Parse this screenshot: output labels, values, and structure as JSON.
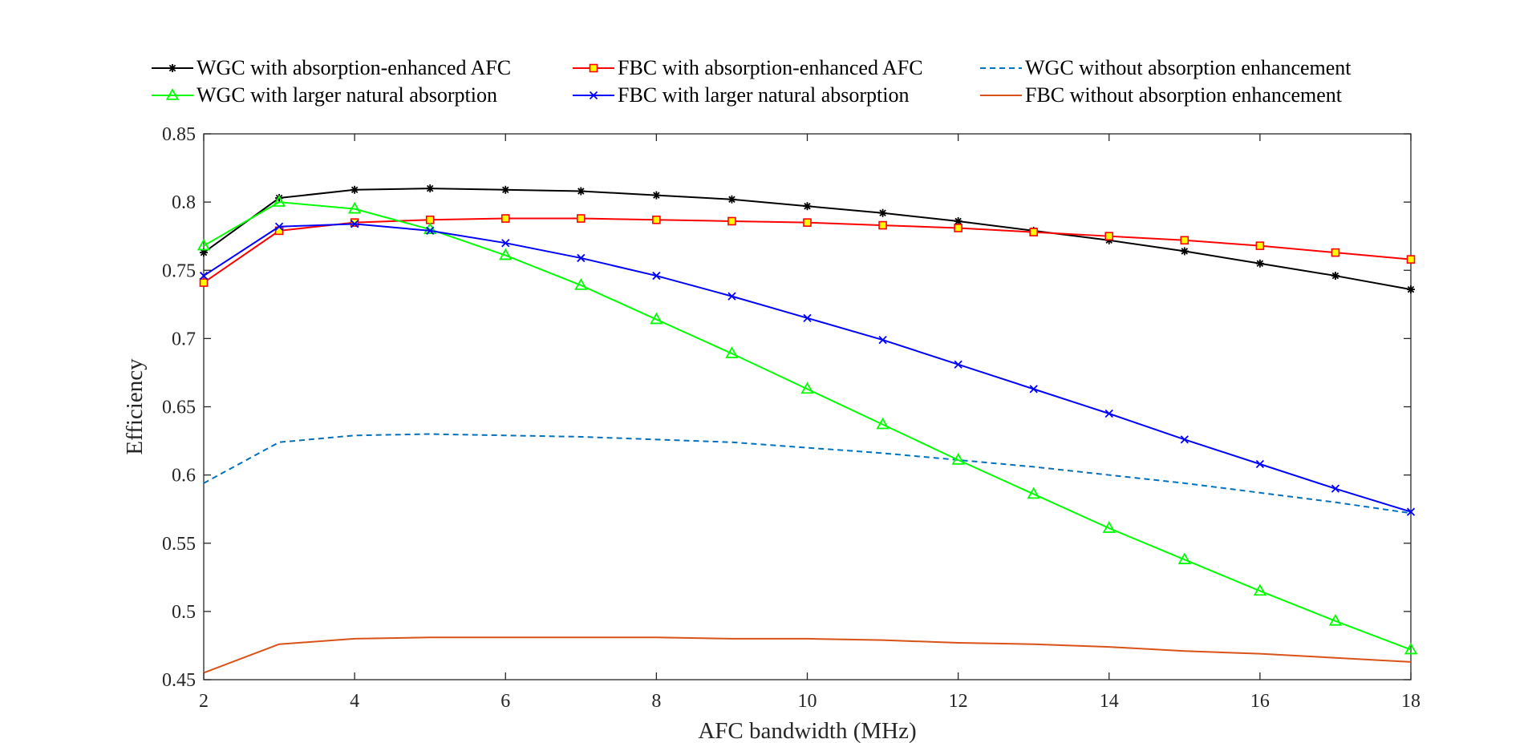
{
  "chart_data": {
    "type": "line",
    "title": "",
    "xlabel": "AFC bandwidth (MHz)",
    "ylabel": "Efficiency",
    "xlim": [
      2,
      18
    ],
    "ylim": [
      0.45,
      0.85
    ],
    "x_ticks": [
      2,
      4,
      6,
      8,
      10,
      12,
      14,
      16,
      18
    ],
    "y_ticks": [
      0.45,
      0.5,
      0.55,
      0.6,
      0.65,
      0.7,
      0.75,
      0.8,
      0.85
    ],
    "x_tick_labels": [
      "2",
      "4",
      "6",
      "8",
      "10",
      "12",
      "14",
      "16",
      "18"
    ],
    "y_tick_labels": [
      "0.45",
      "0.5",
      "0.55",
      "0.6",
      "0.65",
      "0.7",
      "0.75",
      "0.8",
      "0.85"
    ],
    "grid": false,
    "legend_position": "top",
    "x": [
      2,
      3,
      4,
      5,
      6,
      7,
      8,
      9,
      10,
      11,
      12,
      13,
      14,
      15,
      16,
      17,
      18
    ],
    "series": [
      {
        "name": "WGC with absorption-enhanced AFC",
        "color": "#000000",
        "marker": "asterisk",
        "dash": "solid",
        "values": [
          0.763,
          0.803,
          0.809,
          0.81,
          0.809,
          0.808,
          0.805,
          0.802,
          0.797,
          0.792,
          0.786,
          0.779,
          0.772,
          0.764,
          0.755,
          0.746,
          0.736
        ]
      },
      {
        "name": "FBC with absorption-enhanced AFC",
        "color": "#ff0000",
        "marker_fill": "#ffff00",
        "marker": "square",
        "dash": "solid",
        "values": [
          0.741,
          0.779,
          0.785,
          0.787,
          0.788,
          0.788,
          0.787,
          0.786,
          0.785,
          0.783,
          0.781,
          0.778,
          0.775,
          0.772,
          0.768,
          0.763,
          0.758
        ]
      },
      {
        "name": "WGC without absorption enhancement",
        "color": "#0072bd",
        "marker": "none",
        "dash": "dashed",
        "values": [
          0.594,
          0.624,
          0.629,
          0.63,
          0.629,
          0.628,
          0.626,
          0.624,
          0.62,
          0.616,
          0.611,
          0.606,
          0.6,
          0.594,
          0.587,
          0.58,
          0.572
        ]
      },
      {
        "name": "WGC with larger natural absorption",
        "color": "#00ff00",
        "marker": "triangle",
        "dash": "solid",
        "values": [
          0.768,
          0.8,
          0.795,
          0.78,
          0.761,
          0.739,
          0.714,
          0.689,
          0.663,
          0.637,
          0.611,
          0.586,
          0.561,
          0.538,
          0.515,
          0.493,
          0.472
        ]
      },
      {
        "name": "FBC with larger natural absorption",
        "color": "#0000ff",
        "marker": "x",
        "dash": "solid",
        "values": [
          0.746,
          0.782,
          0.784,
          0.779,
          0.77,
          0.759,
          0.746,
          0.731,
          0.715,
          0.699,
          0.681,
          0.663,
          0.645,
          0.626,
          0.608,
          0.59,
          0.573
        ]
      },
      {
        "name": "FBC without absorption enhancement",
        "color": "#d95319",
        "marker": "none",
        "dash": "solid",
        "values": [
          0.455,
          0.476,
          0.48,
          0.481,
          0.481,
          0.481,
          0.481,
          0.48,
          0.48,
          0.479,
          0.477,
          0.476,
          0.474,
          0.471,
          0.469,
          0.466,
          0.463
        ]
      }
    ]
  }
}
